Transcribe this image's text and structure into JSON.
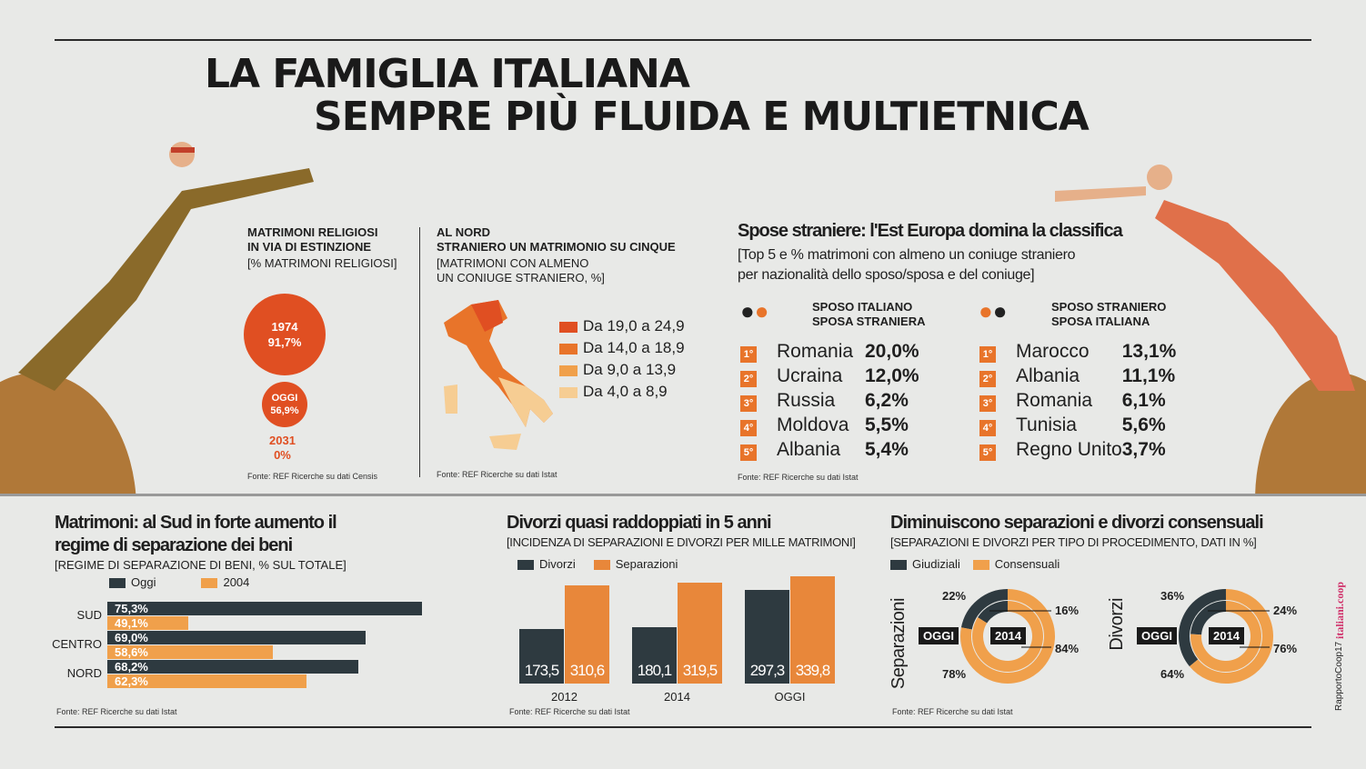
{
  "title": {
    "line1": "LA FAMIGLIA ITALIANA",
    "line2": "SEMPRE PIÙ FLUIDA E MULTIETNICA"
  },
  "colors": {
    "orange": "#e8742a",
    "red": "#e04f22",
    "dark": "#2e3a40",
    "light_orange": "#f0a04b"
  },
  "religiosi": {
    "title1": "MATRIMONI RELIGIOSI",
    "title2": "IN VIA DI ESTINZIONE",
    "subtitle": "[% MATRIMONI RELIGIOSI]",
    "items": [
      {
        "year": "1974",
        "value": "91,7%"
      },
      {
        "year": "OGGI",
        "value": "56,9%"
      },
      {
        "year": "2031",
        "value": "0%"
      }
    ],
    "source": "Fonte: REF Ricerche su dati Censis"
  },
  "nord": {
    "title1": "AL NORD",
    "title2": "STRANIERO UN MATRIMONIO SU CINQUE",
    "subtitle1": "[MATRIMONI CON ALMENO",
    "subtitle2": "UN CONIUGE STRANIERO, %]",
    "legend": [
      {
        "label": "Da 19,0 a 24,9",
        "color": "#e04f22"
      },
      {
        "label": "Da 14,0 a 18,9",
        "color": "#e8742a"
      },
      {
        "label": "Da 9,0 a 13,9",
        "color": "#f0a04b"
      },
      {
        "label": "Da 4,0 a 8,9",
        "color": "#f6cd93"
      }
    ],
    "source": "Fonte: REF Ricerche su dati Istat"
  },
  "spose": {
    "title": "Spose straniere: l'Est Europa domina la classifica",
    "subtitle1": "[Top 5 e % matrimoni con almeno un coniuge straniero",
    "subtitle2": "per nazionalità dello sposo/sposa e del coniuge]",
    "left": {
      "h1": "SPOSO ITALIANO",
      "h2": "SPOSA STRANIERA",
      "rows": [
        {
          "rank": "1°",
          "country": "Romania",
          "pct": "20,0%"
        },
        {
          "rank": "2°",
          "country": "Ucraina",
          "pct": "12,0%"
        },
        {
          "rank": "3°",
          "country": "Russia",
          "pct": "6,2%"
        },
        {
          "rank": "4°",
          "country": "Moldova",
          "pct": "5,5%"
        },
        {
          "rank": "5°",
          "country": "Albania",
          "pct": "5,4%"
        }
      ]
    },
    "right": {
      "h1": "SPOSO STRANIERO",
      "h2": "SPOSA ITALIANA",
      "rows": [
        {
          "rank": "1°",
          "country": "Marocco",
          "pct": "13,1%"
        },
        {
          "rank": "2°",
          "country": "Albania",
          "pct": "11,1%"
        },
        {
          "rank": "3°",
          "country": "Romania",
          "pct": "6,1%"
        },
        {
          "rank": "4°",
          "country": "Tunisia",
          "pct": "5,6%"
        },
        {
          "rank": "5°",
          "country": "Regno Unito",
          "pct": "3,7%"
        }
      ]
    },
    "source": "Fonte: REF Ricerche su dati Istat"
  },
  "chart_data": [
    {
      "type": "bar",
      "orientation": "horizontal",
      "title": "Matrimoni: al Sud in forte aumento il regime di separazione dei beni",
      "subtitle": "[REGIME DI SEPARAZIONE DI BENI, % SUL TOTALE]",
      "categories": [
        "SUD",
        "CENTRO",
        "NORD"
      ],
      "series": [
        {
          "name": "Oggi",
          "values": [
            75.3,
            69.0,
            68.2
          ],
          "labels": [
            "75,3%",
            "69,0%",
            "68,2%"
          ]
        },
        {
          "name": "2004",
          "values": [
            49.1,
            58.6,
            62.3
          ],
          "labels": [
            "49,1%",
            "58,6%",
            "62,3%"
          ]
        }
      ],
      "source": "Fonte: REF Ricerche su dati Istat"
    },
    {
      "type": "bar",
      "title": "Divorzi quasi raddoppiati in 5 anni",
      "subtitle": "[INCIDENZA DI SEPARAZIONI E DIVORZI PER MILLE MATRIMONI]",
      "categories": [
        "2012",
        "2014",
        "OGGI"
      ],
      "series": [
        {
          "name": "Divorzi",
          "values": [
            173.5,
            180.1,
            297.3
          ],
          "labels": [
            "173,5",
            "180,1",
            "297,3"
          ]
        },
        {
          "name": "Separazioni",
          "values": [
            310.6,
            319.5,
            339.8
          ],
          "labels": [
            "310,6",
            "319,5",
            "339,8"
          ]
        }
      ],
      "source": "Fonte: REF Ricerche su dati Istat"
    },
    {
      "type": "pie",
      "title": "Diminuiscono separazioni e divorzi consensuali",
      "subtitle": "[SEPARAZIONI E DIVORZI PER TIPO DI PROCEDIMENTO, DATI IN %]",
      "legend": [
        "Giudiziali",
        "Consensuali"
      ],
      "charts": [
        {
          "name": "Separazioni",
          "outer": "OGGI",
          "inner": "2014",
          "oggi": [
            22,
            78
          ],
          "y2014": [
            16,
            84
          ],
          "labels": {
            "oggi_g": "22%",
            "oggi_c": "78%",
            "y_g": "16%",
            "y_c": "84%"
          }
        },
        {
          "name": "Divorzi",
          "outer": "OGGI",
          "inner": "2014",
          "oggi": [
            36,
            64
          ],
          "y2014": [
            24,
            76
          ],
          "labels": {
            "oggi_g": "36%",
            "oggi_c": "64%",
            "y_g": "24%",
            "y_c": "76%"
          }
        }
      ],
      "source": "Fonte: REF Ricerche su dati Istat"
    }
  ],
  "credit": {
    "a": "RapportoCoop17",
    "b": "italiani.coop"
  }
}
